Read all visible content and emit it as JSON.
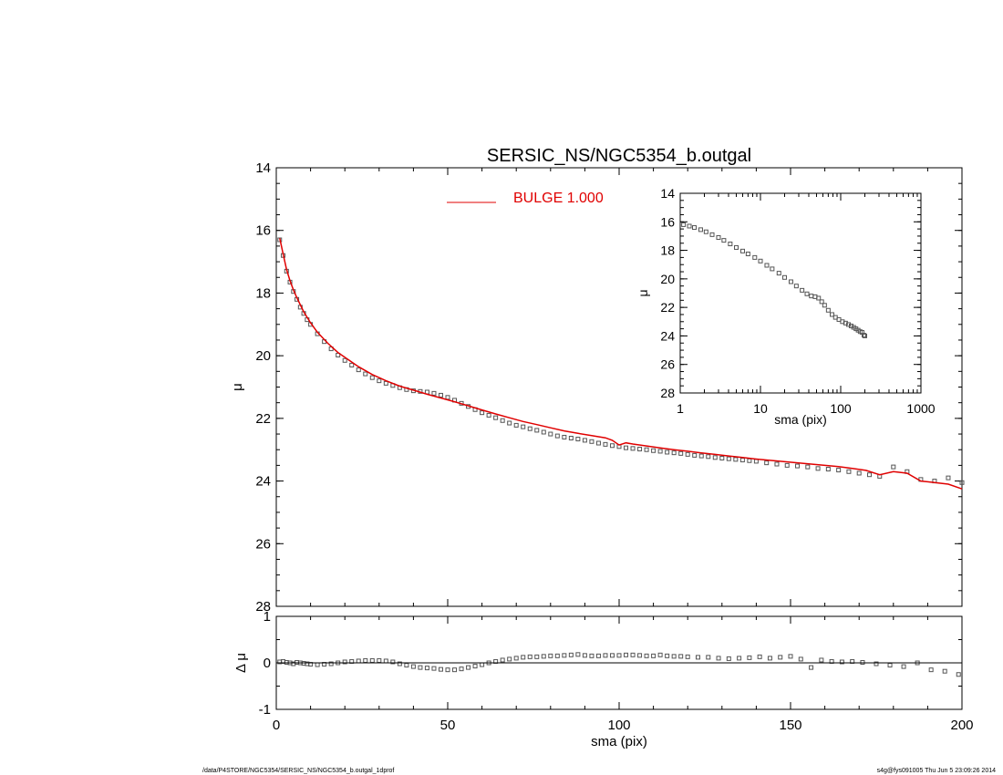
{
  "colors": {
    "model": "#e00000",
    "data": "#555555",
    "axis": "#000000"
  },
  "footer": {
    "left": "/data/P4STORE/NGC5354/SERSIC_NS/NGC5354_b.outgal_1dprof",
    "right": "s4g@fys091005  Thu Jun  5 23:09:26 2014"
  },
  "chart_data": [
    {
      "type": "scatter",
      "panel": "main",
      "title": "SERSIC_NS/NGC5354_b.outgal",
      "xlabel": "",
      "ylabel": "μ",
      "xlim": [
        0,
        200
      ],
      "ylim": [
        28,
        14
      ],
      "y_inverted": true,
      "yticks": [
        14,
        16,
        18,
        20,
        22,
        24,
        26,
        28
      ],
      "legend": {
        "label": "BULGE  1.000",
        "placement": "top-center"
      },
      "series": [
        {
          "name": "data",
          "kind": "markers",
          "x": [
            1,
            2,
            3,
            4,
            5,
            6,
            7,
            8,
            9,
            10,
            12,
            14,
            16,
            18,
            20,
            22,
            24,
            26,
            28,
            30,
            32,
            34,
            36,
            38,
            40,
            42,
            44,
            46,
            48,
            50,
            52,
            54,
            56,
            58,
            60,
            62,
            64,
            66,
            68,
            70,
            72,
            74,
            76,
            78,
            80,
            82,
            84,
            86,
            88,
            90,
            92,
            94,
            96,
            98,
            100,
            102,
            104,
            106,
            108,
            110,
            112,
            114,
            116,
            118,
            120,
            122,
            124,
            126,
            128,
            130,
            132,
            134,
            136,
            138,
            140,
            143,
            146,
            149,
            152,
            155,
            158,
            161,
            164,
            167,
            170,
            173,
            176,
            180,
            184,
            188,
            192,
            196,
            200
          ],
          "y": [
            16.3,
            16.8,
            17.3,
            17.65,
            17.95,
            18.2,
            18.45,
            18.65,
            18.85,
            19.0,
            19.3,
            19.55,
            19.78,
            19.98,
            20.15,
            20.3,
            20.45,
            20.58,
            20.7,
            20.8,
            20.88,
            20.95,
            21.02,
            21.08,
            21.12,
            21.14,
            21.16,
            21.2,
            21.26,
            21.33,
            21.42,
            21.52,
            21.62,
            21.72,
            21.82,
            21.9,
            21.98,
            22.07,
            22.15,
            22.22,
            22.27,
            22.33,
            22.38,
            22.44,
            22.5,
            22.56,
            22.6,
            22.63,
            22.66,
            22.7,
            22.74,
            22.79,
            22.83,
            22.87,
            22.9,
            22.94,
            22.96,
            22.98,
            23.0,
            23.03,
            23.05,
            23.08,
            23.1,
            23.12,
            23.15,
            23.18,
            23.2,
            23.22,
            23.25,
            23.27,
            23.29,
            23.31,
            23.33,
            23.35,
            23.37,
            23.42,
            23.46,
            23.5,
            23.52,
            23.55,
            23.6,
            23.62,
            23.65,
            23.7,
            23.75,
            23.8,
            23.85,
            23.55,
            23.7,
            23.95,
            24.0,
            23.9,
            24.05
          ]
        },
        {
          "name": "BULGE  1.000",
          "kind": "line",
          "x": [
            1,
            2,
            3,
            4,
            5,
            6,
            8,
            10,
            12,
            15,
            18,
            20,
            24,
            28,
            32,
            36,
            40,
            44,
            48,
            52,
            56,
            60,
            64,
            68,
            72,
            76,
            80,
            84,
            88,
            92,
            96,
            98,
            100,
            102,
            104,
            108,
            112,
            116,
            120,
            124,
            128,
            132,
            136,
            140,
            144,
            148,
            152,
            156,
            160,
            164,
            168,
            172,
            176,
            180,
            184,
            188,
            192,
            196,
            200
          ],
          "y": [
            16.25,
            16.75,
            17.25,
            17.6,
            17.9,
            18.15,
            18.6,
            18.95,
            19.25,
            19.6,
            19.9,
            20.05,
            20.35,
            20.6,
            20.8,
            20.97,
            21.1,
            21.23,
            21.35,
            21.47,
            21.6,
            21.73,
            21.86,
            21.98,
            22.1,
            22.2,
            22.3,
            22.4,
            22.48,
            22.55,
            22.62,
            22.7,
            22.85,
            22.78,
            22.82,
            22.88,
            22.94,
            23.0,
            23.05,
            23.1,
            23.15,
            23.2,
            23.25,
            23.3,
            23.34,
            23.38,
            23.42,
            23.46,
            23.5,
            23.54,
            23.6,
            23.66,
            23.8,
            23.7,
            23.75,
            24.0,
            24.05,
            24.1,
            24.25
          ]
        }
      ]
    },
    {
      "type": "scatter",
      "panel": "residual",
      "xlabel": "sma (pix)",
      "ylabel": "Δ μ",
      "xlim": [
        0,
        200
      ],
      "ylim": [
        -1,
        1
      ],
      "xticks": [
        0,
        50,
        100,
        150,
        200
      ],
      "yticks": [
        -1,
        0,
        1
      ],
      "series": [
        {
          "name": "residual",
          "kind": "markers",
          "x": [
            1,
            2,
            3,
            4,
            5,
            6,
            7,
            8,
            9,
            10,
            12,
            14,
            16,
            18,
            20,
            22,
            24,
            26,
            28,
            30,
            32,
            34,
            36,
            38,
            40,
            42,
            44,
            46,
            48,
            50,
            52,
            54,
            56,
            58,
            60,
            62,
            64,
            66,
            68,
            70,
            72,
            74,
            76,
            78,
            80,
            82,
            84,
            86,
            88,
            90,
            92,
            94,
            96,
            98,
            100,
            102,
            104,
            106,
            108,
            110,
            112,
            114,
            116,
            118,
            120,
            123,
            126,
            129,
            132,
            135,
            138,
            141,
            144,
            147,
            150,
            153,
            156,
            159,
            162,
            165,
            168,
            171,
            175,
            179,
            183,
            187,
            191,
            195,
            199
          ],
          "y": [
            0.02,
            0.03,
            0.01,
            0.0,
            -0.02,
            0.01,
            0.0,
            -0.01,
            -0.02,
            -0.03,
            -0.04,
            -0.03,
            -0.02,
            0.0,
            0.02,
            0.03,
            0.04,
            0.05,
            0.05,
            0.05,
            0.04,
            0.02,
            -0.02,
            -0.05,
            -0.08,
            -0.1,
            -0.11,
            -0.12,
            -0.14,
            -0.15,
            -0.15,
            -0.13,
            -0.1,
            -0.07,
            -0.04,
            0.0,
            0.03,
            0.06,
            0.08,
            0.1,
            0.12,
            0.13,
            0.13,
            0.14,
            0.15,
            0.15,
            0.16,
            0.17,
            0.18,
            0.16,
            0.15,
            0.15,
            0.16,
            0.16,
            0.16,
            0.17,
            0.17,
            0.16,
            0.15,
            0.15,
            0.17,
            0.15,
            0.14,
            0.14,
            0.13,
            0.12,
            0.12,
            0.1,
            0.09,
            0.1,
            0.11,
            0.13,
            0.1,
            0.12,
            0.14,
            0.08,
            -0.1,
            0.06,
            0.03,
            0.02,
            0.03,
            0.01,
            -0.02,
            -0.05,
            -0.08,
            0.0,
            -0.15,
            -0.18,
            -0.25
          ]
        }
      ]
    },
    {
      "type": "scatter",
      "panel": "inset",
      "xlabel": "sma (pix)",
      "ylabel": "μ",
      "xscale": "log",
      "xlim": [
        1,
        1000
      ],
      "ylim": [
        28,
        14
      ],
      "y_inverted": true,
      "xticks": [
        1,
        10,
        100,
        1000
      ],
      "yticks": [
        14,
        16,
        18,
        20,
        22,
        24,
        26,
        28
      ],
      "series": [
        {
          "name": "data",
          "kind": "markers",
          "x": [
            1.1,
            1.3,
            1.5,
            1.8,
            2.1,
            2.5,
            3.0,
            3.5,
            4.2,
            5.0,
            6.0,
            7.0,
            8.5,
            10,
            12,
            14,
            17,
            20,
            24,
            28,
            33,
            38,
            43,
            48,
            53,
            58,
            63,
            70,
            78,
            86,
            95,
            105,
            115,
            125,
            135,
            145,
            155,
            165,
            175,
            185,
            195,
            200
          ],
          "y": [
            16.2,
            16.3,
            16.4,
            16.55,
            16.7,
            16.9,
            17.1,
            17.3,
            17.55,
            17.8,
            18.05,
            18.25,
            18.5,
            18.75,
            19.05,
            19.3,
            19.6,
            19.9,
            20.2,
            20.5,
            20.8,
            21.05,
            21.2,
            21.25,
            21.35,
            21.6,
            21.85,
            22.2,
            22.5,
            22.7,
            22.85,
            23.0,
            23.1,
            23.2,
            23.3,
            23.4,
            23.5,
            23.6,
            23.7,
            23.75,
            23.95,
            24.0
          ]
        }
      ]
    }
  ]
}
